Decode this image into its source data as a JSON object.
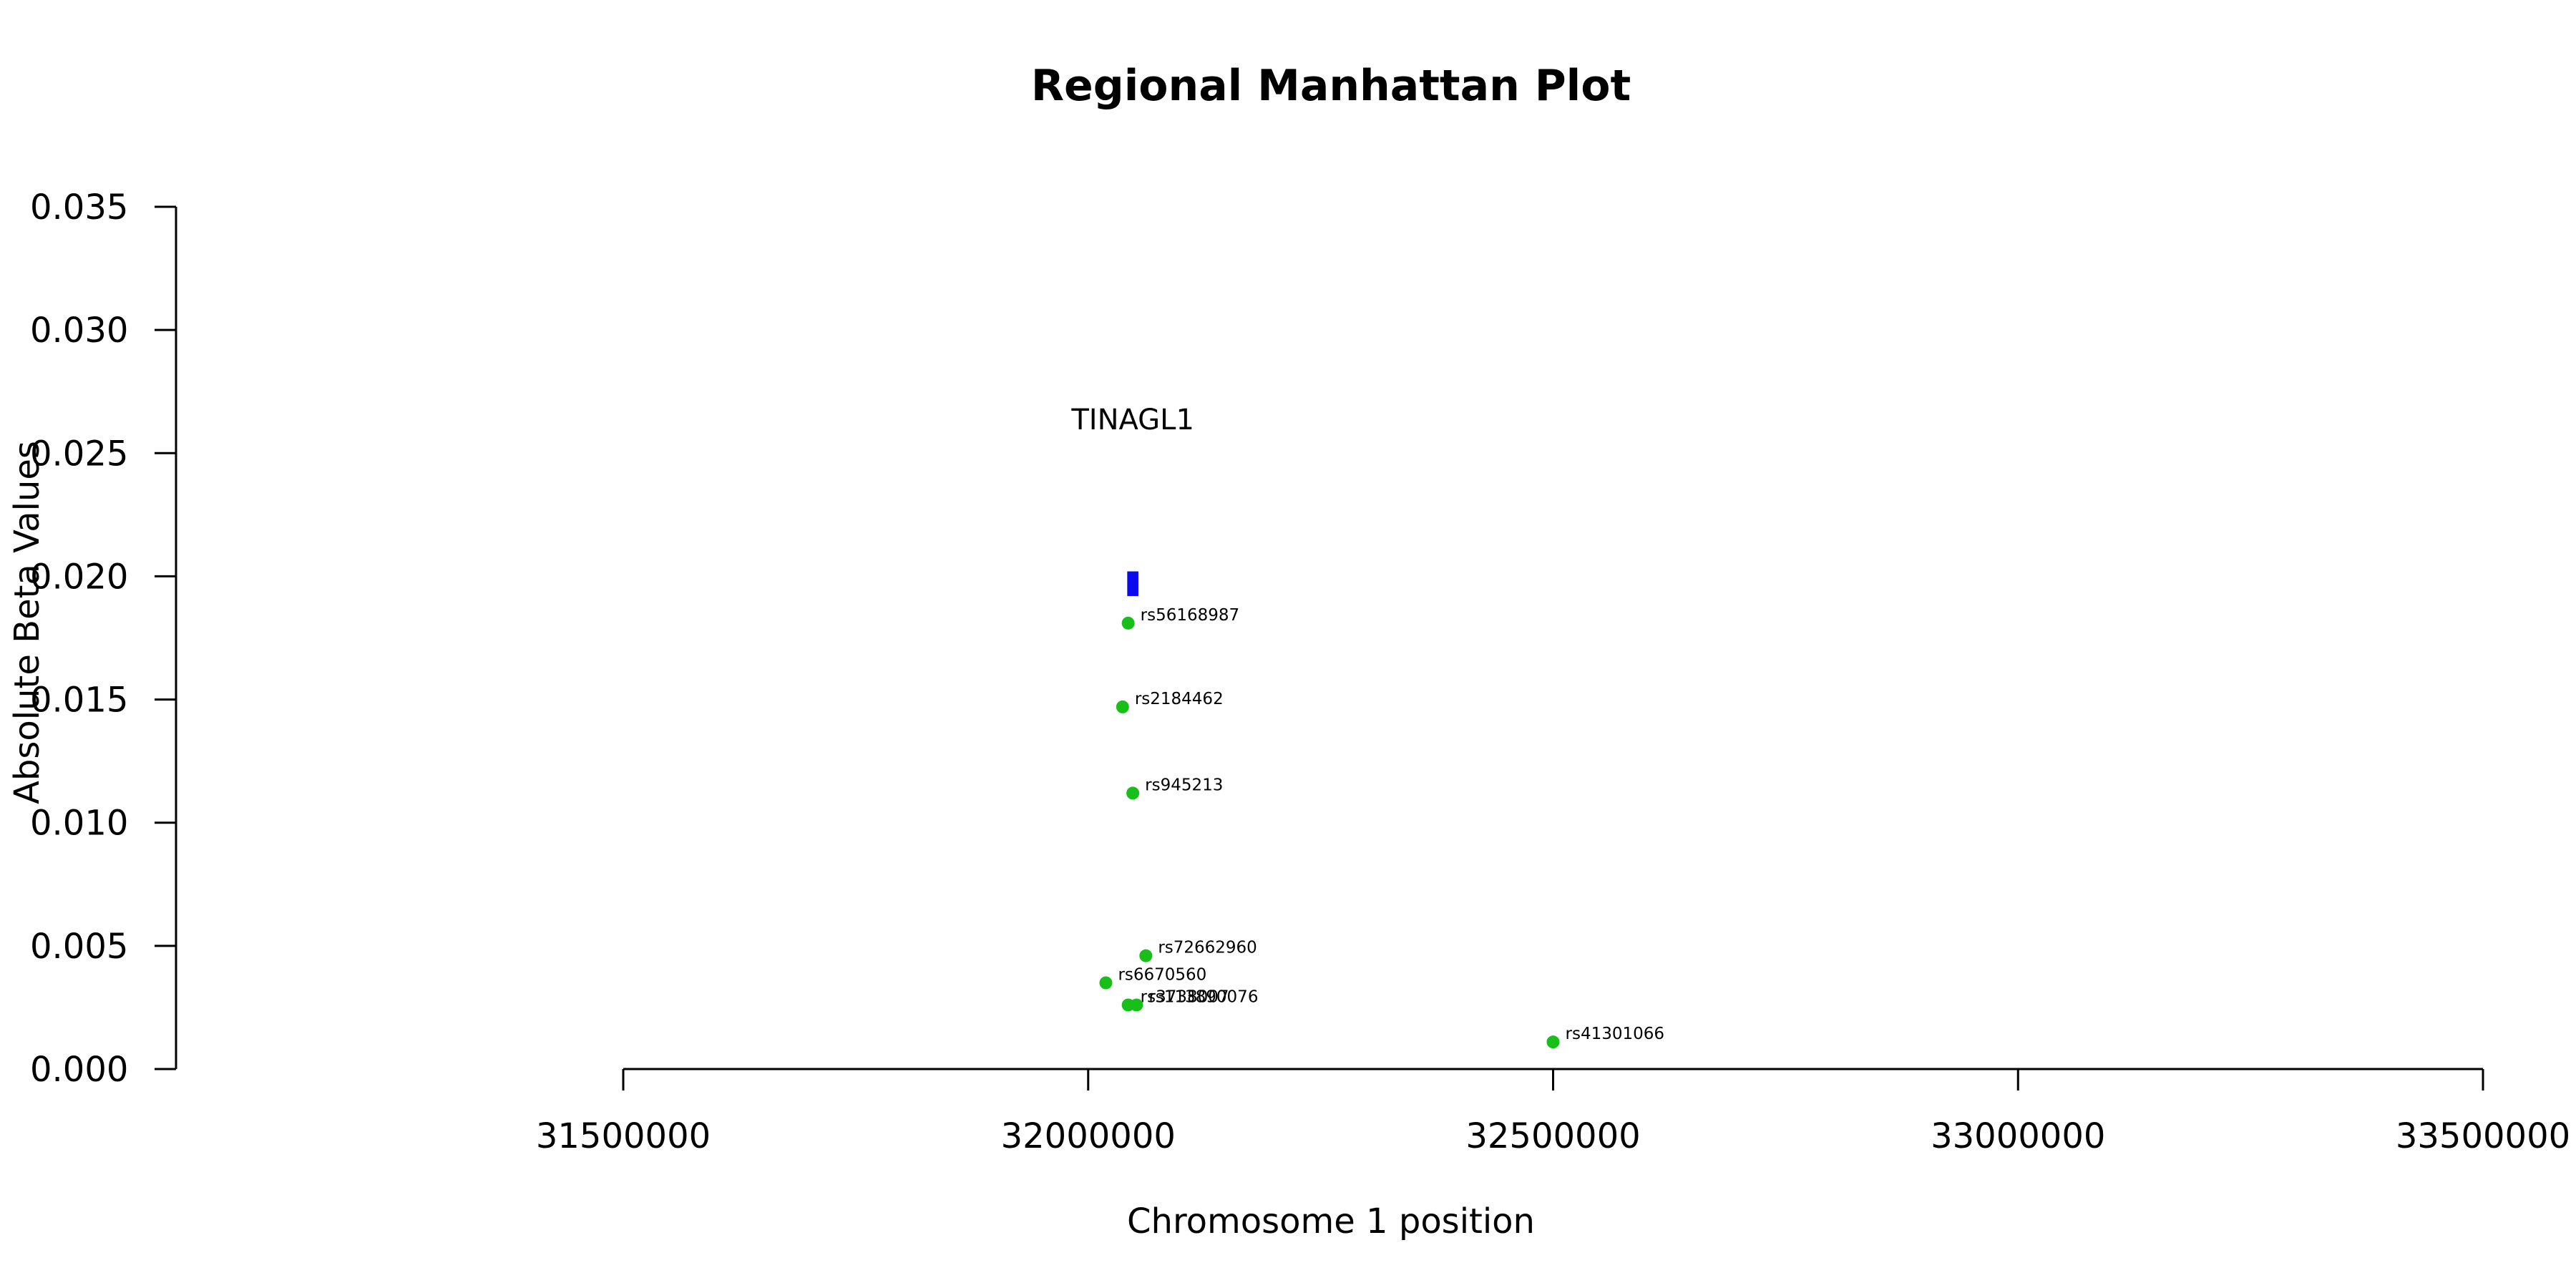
{
  "chart_data": {
    "type": "scatter",
    "title": "Regional Manhattan Plot",
    "xlabel": "Chromosome 1 position",
    "ylabel": "Absolute Beta Values",
    "xlim": [
      31500000,
      33500000
    ],
    "ylim": [
      0,
      0.035
    ],
    "x_ticks": [
      31500000,
      32000000,
      32500000,
      33000000,
      33500000
    ],
    "x_tick_labels": [
      "31500000",
      "32000000",
      "32500000",
      "33000000",
      "33500000"
    ],
    "y_ticks": [
      0,
      0.005,
      0.01,
      0.015,
      0.02,
      0.025,
      0.03,
      0.035
    ],
    "y_tick_labels": [
      "0.000",
      "0.005",
      "0.010",
      "0.015",
      "0.020",
      "0.025",
      "0.030",
      "0.035"
    ],
    "grid": false,
    "legend": "none",
    "point_color": "#19bf19",
    "points": [
      {
        "label": "rs56168987",
        "x": 32043000,
        "y": 0.0181
      },
      {
        "label": "rs2184462",
        "x": 32037000,
        "y": 0.0147
      },
      {
        "label": "rs945213",
        "x": 32048000,
        "y": 0.0112
      },
      {
        "label": "rs72662960",
        "x": 32062000,
        "y": 0.0046
      },
      {
        "label": "rs6670560",
        "x": 32019000,
        "y": 0.0035
      },
      {
        "label": "rs3738007",
        "x": 32043000,
        "y": 0.0026
      },
      {
        "label": "rs113890076",
        "x": 32052000,
        "y": 0.0026
      },
      {
        "label": "rs41301066",
        "x": 32500000,
        "y": 0.0011
      }
    ],
    "gene": {
      "label": "TINAGL1",
      "color": "#0a0af0",
      "start": 32042000,
      "end": 32054000,
      "y_bottom": 0.0192,
      "y_top": 0.0202
    }
  }
}
